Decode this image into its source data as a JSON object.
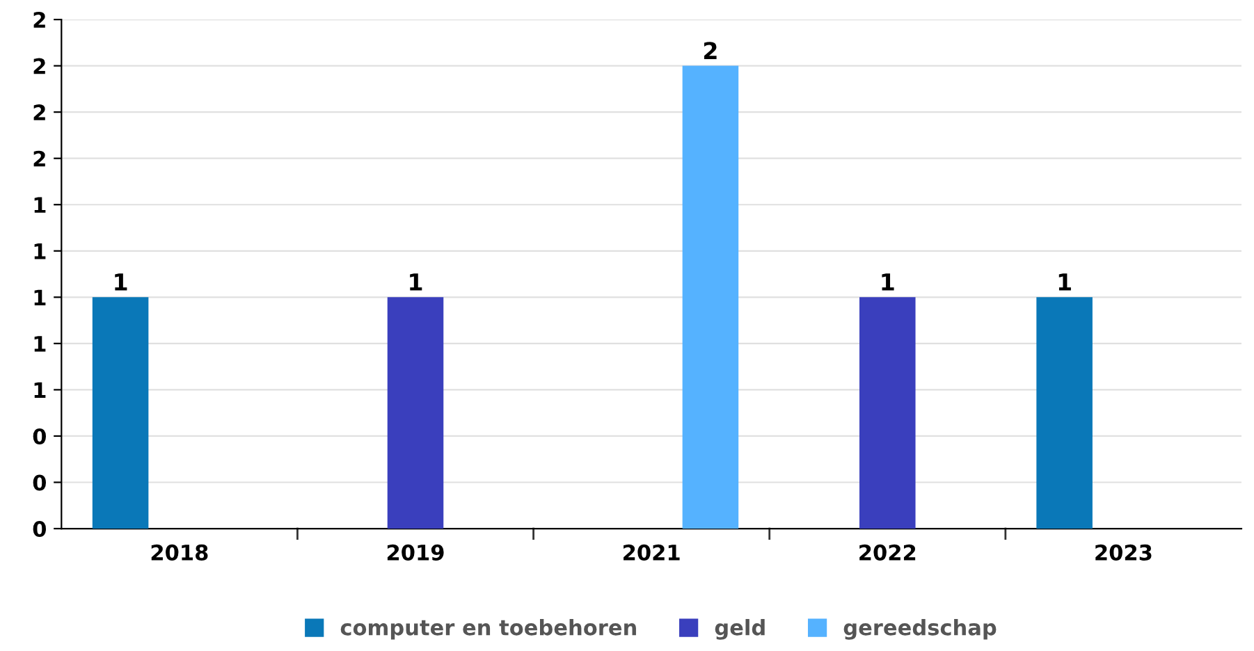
{
  "chart_data": {
    "type": "bar",
    "categories": [
      "2018",
      "2019",
      "2021",
      "2022",
      "2023"
    ],
    "series": [
      {
        "name": "computer en toebehoren",
        "color": "#0a78b8",
        "values": [
          1,
          null,
          null,
          null,
          1
        ]
      },
      {
        "name": "geld",
        "color": "#3a3fbd",
        "values": [
          null,
          1,
          null,
          1,
          null
        ]
      },
      {
        "name": "gereedschap",
        "color": "#55b2ff",
        "values": [
          null,
          null,
          2,
          null,
          null
        ]
      }
    ],
    "ylim": [
      0,
      2.2
    ],
    "yticks": [
      0,
      {
        "value": 0.2,
        "label": "0"
      },
      {
        "value": 0.4,
        "label": "0"
      },
      {
        "value": 0.6,
        "label": "1"
      },
      {
        "value": 0.8,
        "label": "1"
      },
      {
        "value": 1.0,
        "label": "1"
      },
      {
        "value": 1.2,
        "label": "1"
      },
      {
        "value": 1.4,
        "label": "1"
      },
      {
        "value": 1.6,
        "label": "2"
      },
      {
        "value": 1.8,
        "label": "2"
      },
      {
        "value": 2.0,
        "label": "2"
      },
      {
        "value": 2.2,
        "label": "2"
      }
    ],
    "data_labels": true,
    "grid": "y",
    "legend": "bottom"
  }
}
